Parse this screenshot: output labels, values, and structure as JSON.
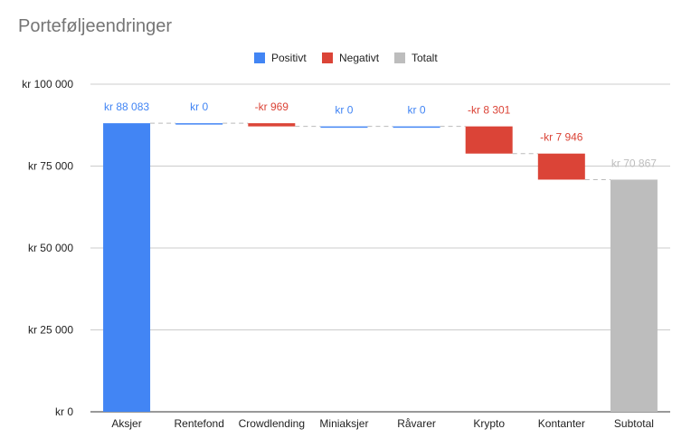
{
  "chart_data": {
    "type": "waterfall",
    "title": "Porteføljeendringer",
    "legend": {
      "position": "top",
      "entries": [
        {
          "label": "Positivt",
          "color": "#4285F4"
        },
        {
          "label": "Negativt",
          "color": "#DB4437"
        },
        {
          "label": "Totalt",
          "color": "#BDBDBD"
        }
      ]
    },
    "y_axis": {
      "min": 0,
      "max": 100000,
      "ticks": [
        {
          "value": 0,
          "label": "kr  0"
        },
        {
          "value": 25000,
          "label": "kr  25 000"
        },
        {
          "value": 50000,
          "label": "kr  50 000"
        },
        {
          "value": 75000,
          "label": "kr  75 000"
        },
        {
          "value": 100000,
          "label": "kr  100 000"
        }
      ],
      "gridlines": true
    },
    "steps": [
      {
        "category": "Aksjer",
        "value": 88083,
        "kind": "positive",
        "label": "kr  88 083"
      },
      {
        "category": "Rentefond",
        "value": 0,
        "kind": "positive",
        "label": "kr  0"
      },
      {
        "category": "Crowdlending",
        "value": -969,
        "kind": "negative",
        "label": "-kr  969"
      },
      {
        "category": "Miniaksjer",
        "value": 0,
        "kind": "positive",
        "label": "kr  0"
      },
      {
        "category": "Råvarer",
        "value": 0,
        "kind": "positive",
        "label": "kr  0"
      },
      {
        "category": "Krypto",
        "value": -8301,
        "kind": "negative",
        "label": "-kr  8 301"
      },
      {
        "category": "Kontanter",
        "value": -7946,
        "kind": "negative",
        "label": "-kr  7 946"
      },
      {
        "category": "Subtotal",
        "value": 70867,
        "kind": "total",
        "label": "kr  70 867"
      }
    ],
    "colors": {
      "positive": "#4285F4",
      "negative": "#DB4437",
      "total": "#BDBDBD",
      "label_total": "#BDBDBD"
    }
  }
}
